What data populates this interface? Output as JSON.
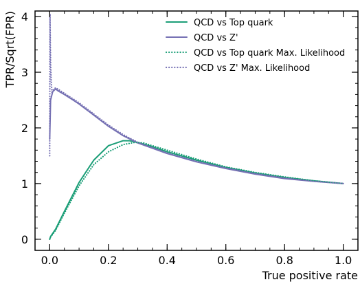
{
  "chart_data": {
    "type": "line",
    "xlabel": "True positive rate",
    "ylabel": "TPR/Sqrt(FPR)",
    "xlim": [
      -0.05,
      1.05
    ],
    "ylim": [
      -0.2,
      4.1
    ],
    "x_ticks": [
      0.0,
      0.2,
      0.4,
      0.6,
      0.8,
      1.0
    ],
    "x_tick_labels": [
      "0.0",
      "0.2",
      "0.4",
      "0.6",
      "0.8",
      "1.0"
    ],
    "y_ticks": [
      0,
      1,
      2,
      3,
      4
    ],
    "y_tick_labels": [
      "0",
      "1",
      "2",
      "3",
      "4"
    ],
    "grid": false,
    "legend_position": "top-right",
    "colors": {
      "top": "#1b9e77",
      "zprime": "#7570b3"
    },
    "series": [
      {
        "name": "QCD vs Top quark",
        "color": "#1b9e77",
        "style": "solid",
        "x": [
          0.0,
          0.003,
          0.02,
          0.05,
          0.1,
          0.15,
          0.2,
          0.25,
          0.27,
          0.3,
          0.35,
          0.4,
          0.5,
          0.6,
          0.7,
          0.8,
          0.9,
          1.0
        ],
        "y": [
          0.0,
          0.05,
          0.18,
          0.5,
          1.02,
          1.42,
          1.68,
          1.77,
          1.77,
          1.74,
          1.66,
          1.57,
          1.42,
          1.29,
          1.19,
          1.11,
          1.05,
          1.0
        ]
      },
      {
        "name": "QCD vs Z'",
        "color": "#7570b3",
        "style": "solid",
        "x": [
          0.0,
          0.003,
          0.01,
          0.02,
          0.03,
          0.05,
          0.08,
          0.1,
          0.15,
          0.2,
          0.25,
          0.3,
          0.4,
          0.5,
          0.6,
          0.7,
          0.8,
          0.9,
          1.0
        ],
        "y": [
          1.8,
          2.5,
          2.65,
          2.7,
          2.66,
          2.6,
          2.5,
          2.43,
          2.23,
          2.03,
          1.86,
          1.73,
          1.54,
          1.39,
          1.27,
          1.17,
          1.09,
          1.04,
          1.0
        ]
      },
      {
        "name": "QCD vs Top quark Max. Likelihood",
        "color": "#1b9e77",
        "style": "dotted",
        "x": [
          0.0,
          0.003,
          0.02,
          0.05,
          0.1,
          0.15,
          0.2,
          0.25,
          0.29,
          0.32,
          0.35,
          0.4,
          0.5,
          0.6,
          0.7,
          0.8,
          0.9,
          1.0
        ],
        "y": [
          0.0,
          0.04,
          0.16,
          0.47,
          0.96,
          1.34,
          1.57,
          1.7,
          1.74,
          1.73,
          1.68,
          1.6,
          1.44,
          1.3,
          1.2,
          1.12,
          1.05,
          1.0
        ]
      },
      {
        "name": "QCD vs Z' Max. Likelihood",
        "color": "#7570b3",
        "style": "dotted",
        "x": [
          0.0,
          0.001,
          0.002,
          0.003,
          0.005,
          0.008,
          0.012,
          0.02,
          0.03,
          0.05,
          0.08,
          0.1,
          0.15,
          0.2,
          0.25,
          0.3,
          0.4,
          0.5,
          0.6,
          0.7,
          0.8,
          0.9,
          1.0
        ],
        "y": [
          1.5,
          4.05,
          3.6,
          3.2,
          2.85,
          2.62,
          2.68,
          2.72,
          2.69,
          2.62,
          2.52,
          2.45,
          2.25,
          2.05,
          1.88,
          1.74,
          1.55,
          1.4,
          1.28,
          1.18,
          1.1,
          1.04,
          1.0
        ]
      }
    ]
  }
}
